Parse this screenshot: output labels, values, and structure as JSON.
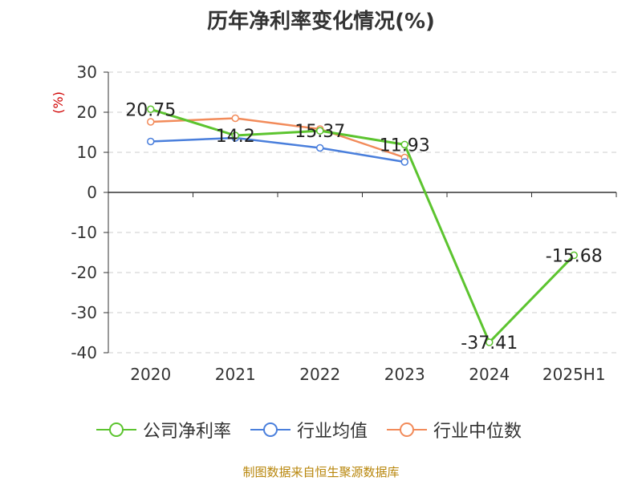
{
  "chart_data": {
    "type": "line",
    "title": "历年净利率变化情况(%)",
    "ylabel": "(%)",
    "xlabel": "",
    "categories": [
      "2020",
      "2021",
      "2022",
      "2023",
      "2024",
      "2025H1"
    ],
    "ylim": [
      -40,
      30
    ],
    "yticks": [
      30,
      20,
      10,
      0,
      -10,
      -20,
      -30,
      -40
    ],
    "grid": true,
    "legend_position": "bottom",
    "series": [
      {
        "name": "公司净利率",
        "color": "#5cc42f",
        "values": [
          20.75,
          14.2,
          15.37,
          11.93,
          -37.41,
          -15.68
        ],
        "labels": [
          "20.75",
          "14.2",
          "15.37",
          "11.93",
          "-37.41",
          "-15.68"
        ]
      },
      {
        "name": "行业均值",
        "color": "#4a7fdc",
        "values": [
          12.7,
          13.6,
          11.1,
          7.6,
          null,
          null
        ]
      },
      {
        "name": "行业中位数",
        "color": "#f28b5a",
        "values": [
          17.6,
          18.5,
          15.8,
          8.7,
          null,
          null
        ]
      }
    ]
  },
  "source_note": "制图数据来自恒生聚源数据库"
}
